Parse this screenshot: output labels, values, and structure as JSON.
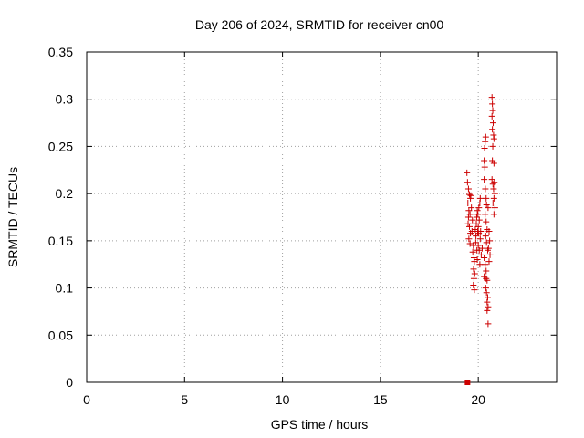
{
  "chart_data": {
    "type": "scatter",
    "title": "Day 206 of 2024, SRMTID for receiver cn00",
    "xlabel": "GPS time / hours",
    "ylabel": "SRMTID / TECUs",
    "xlim": [
      0,
      24
    ],
    "ylim": [
      0,
      0.35
    ],
    "xticks": [
      0,
      5,
      10,
      15,
      20
    ],
    "xtick_labels": [
      "0",
      "5",
      "10",
      "15",
      "20"
    ],
    "yticks": [
      0,
      0.05,
      0.1,
      0.15,
      0.2,
      0.25,
      0.3,
      0.35
    ],
    "ytick_labels": [
      "0",
      "0.05",
      "0.1",
      "0.15",
      "0.2",
      "0.25",
      "0.3",
      "0.35"
    ],
    "grid": true,
    "marker_color": "#cc0000",
    "series": [
      {
        "marker": "plus",
        "points": [
          [
            19.42,
            0.222
          ],
          [
            19.45,
            0.212
          ],
          [
            19.5,
            0.205
          ],
          [
            19.55,
            0.199
          ],
          [
            19.6,
            0.195
          ],
          [
            19.47,
            0.19
          ],
          [
            19.52,
            0.182
          ],
          [
            19.58,
            0.178
          ],
          [
            19.5,
            0.175
          ],
          [
            19.48,
            0.168
          ],
          [
            19.55,
            0.165
          ],
          [
            19.6,
            0.158
          ],
          [
            19.52,
            0.152
          ],
          [
            19.58,
            0.147
          ],
          [
            19.65,
            0.185
          ],
          [
            19.7,
            0.172
          ],
          [
            19.68,
            0.16
          ],
          [
            19.62,
            0.198
          ],
          [
            19.75,
            0.145
          ],
          [
            19.72,
            0.138
          ],
          [
            19.78,
            0.132
          ],
          [
            19.8,
            0.128
          ],
          [
            19.76,
            0.12
          ],
          [
            19.82,
            0.115
          ],
          [
            19.78,
            0.11
          ],
          [
            19.75,
            0.103
          ],
          [
            19.8,
            0.098
          ],
          [
            19.85,
            0.162
          ],
          [
            19.88,
            0.155
          ],
          [
            19.9,
            0.168
          ],
          [
            19.92,
            0.175
          ],
          [
            19.95,
            0.182
          ],
          [
            19.87,
            0.148
          ],
          [
            19.93,
            0.14
          ],
          [
            19.97,
            0.16
          ],
          [
            20.0,
            0.165
          ],
          [
            20.02,
            0.158
          ],
          [
            20.05,
            0.172
          ],
          [
            19.98,
            0.178
          ],
          [
            20.03,
            0.185
          ],
          [
            20.08,
            0.19
          ],
          [
            20.1,
            0.195
          ],
          [
            20.0,
            0.145
          ],
          [
            20.05,
            0.14
          ],
          [
            20.1,
            0.152
          ],
          [
            20.12,
            0.16
          ],
          [
            19.95,
            0.13
          ],
          [
            20.08,
            0.125
          ],
          [
            20.15,
            0.135
          ],
          [
            20.2,
            0.142
          ],
          [
            20.3,
            0.235
          ],
          [
            20.32,
            0.248
          ],
          [
            20.35,
            0.255
          ],
          [
            20.38,
            0.26
          ],
          [
            20.33,
            0.228
          ],
          [
            20.3,
            0.215
          ],
          [
            20.36,
            0.205
          ],
          [
            20.4,
            0.195
          ],
          [
            20.42,
            0.188
          ],
          [
            20.35,
            0.178
          ],
          [
            20.4,
            0.17
          ],
          [
            20.45,
            0.162
          ],
          [
            20.38,
            0.155
          ],
          [
            20.42,
            0.148
          ],
          [
            20.48,
            0.14
          ],
          [
            20.3,
            0.132
          ],
          [
            20.35,
            0.125
          ],
          [
            20.4,
            0.118
          ],
          [
            20.3,
            0.112
          ],
          [
            20.45,
            0.108
          ],
          [
            20.38,
            0.1
          ],
          [
            20.42,
            0.095
          ],
          [
            20.48,
            0.09
          ],
          [
            20.45,
            0.085
          ],
          [
            20.5,
            0.08
          ],
          [
            20.45,
            0.076
          ],
          [
            20.5,
            0.062
          ],
          [
            20.4,
            0.11
          ],
          [
            20.55,
            0.16
          ],
          [
            20.58,
            0.15
          ],
          [
            20.52,
            0.142
          ],
          [
            20.6,
            0.135
          ],
          [
            20.55,
            0.128
          ],
          [
            20.5,
            0.185
          ],
          [
            20.7,
            0.302
          ],
          [
            20.72,
            0.295
          ],
          [
            20.74,
            0.288
          ],
          [
            20.7,
            0.282
          ],
          [
            20.76,
            0.275
          ],
          [
            20.72,
            0.268
          ],
          [
            20.78,
            0.262
          ],
          [
            20.8,
            0.258
          ],
          [
            20.74,
            0.25
          ],
          [
            20.72,
            0.235
          ],
          [
            20.8,
            0.232
          ],
          [
            20.7,
            0.215
          ],
          [
            20.75,
            0.21
          ],
          [
            20.82,
            0.212
          ],
          [
            20.78,
            0.205
          ],
          [
            20.85,
            0.2
          ],
          [
            20.8,
            0.195
          ],
          [
            20.75,
            0.19
          ],
          [
            20.85,
            0.185
          ],
          [
            20.8,
            0.178
          ]
        ]
      },
      {
        "marker": "square",
        "points": [
          [
            19.45,
            0.0
          ]
        ]
      }
    ]
  }
}
